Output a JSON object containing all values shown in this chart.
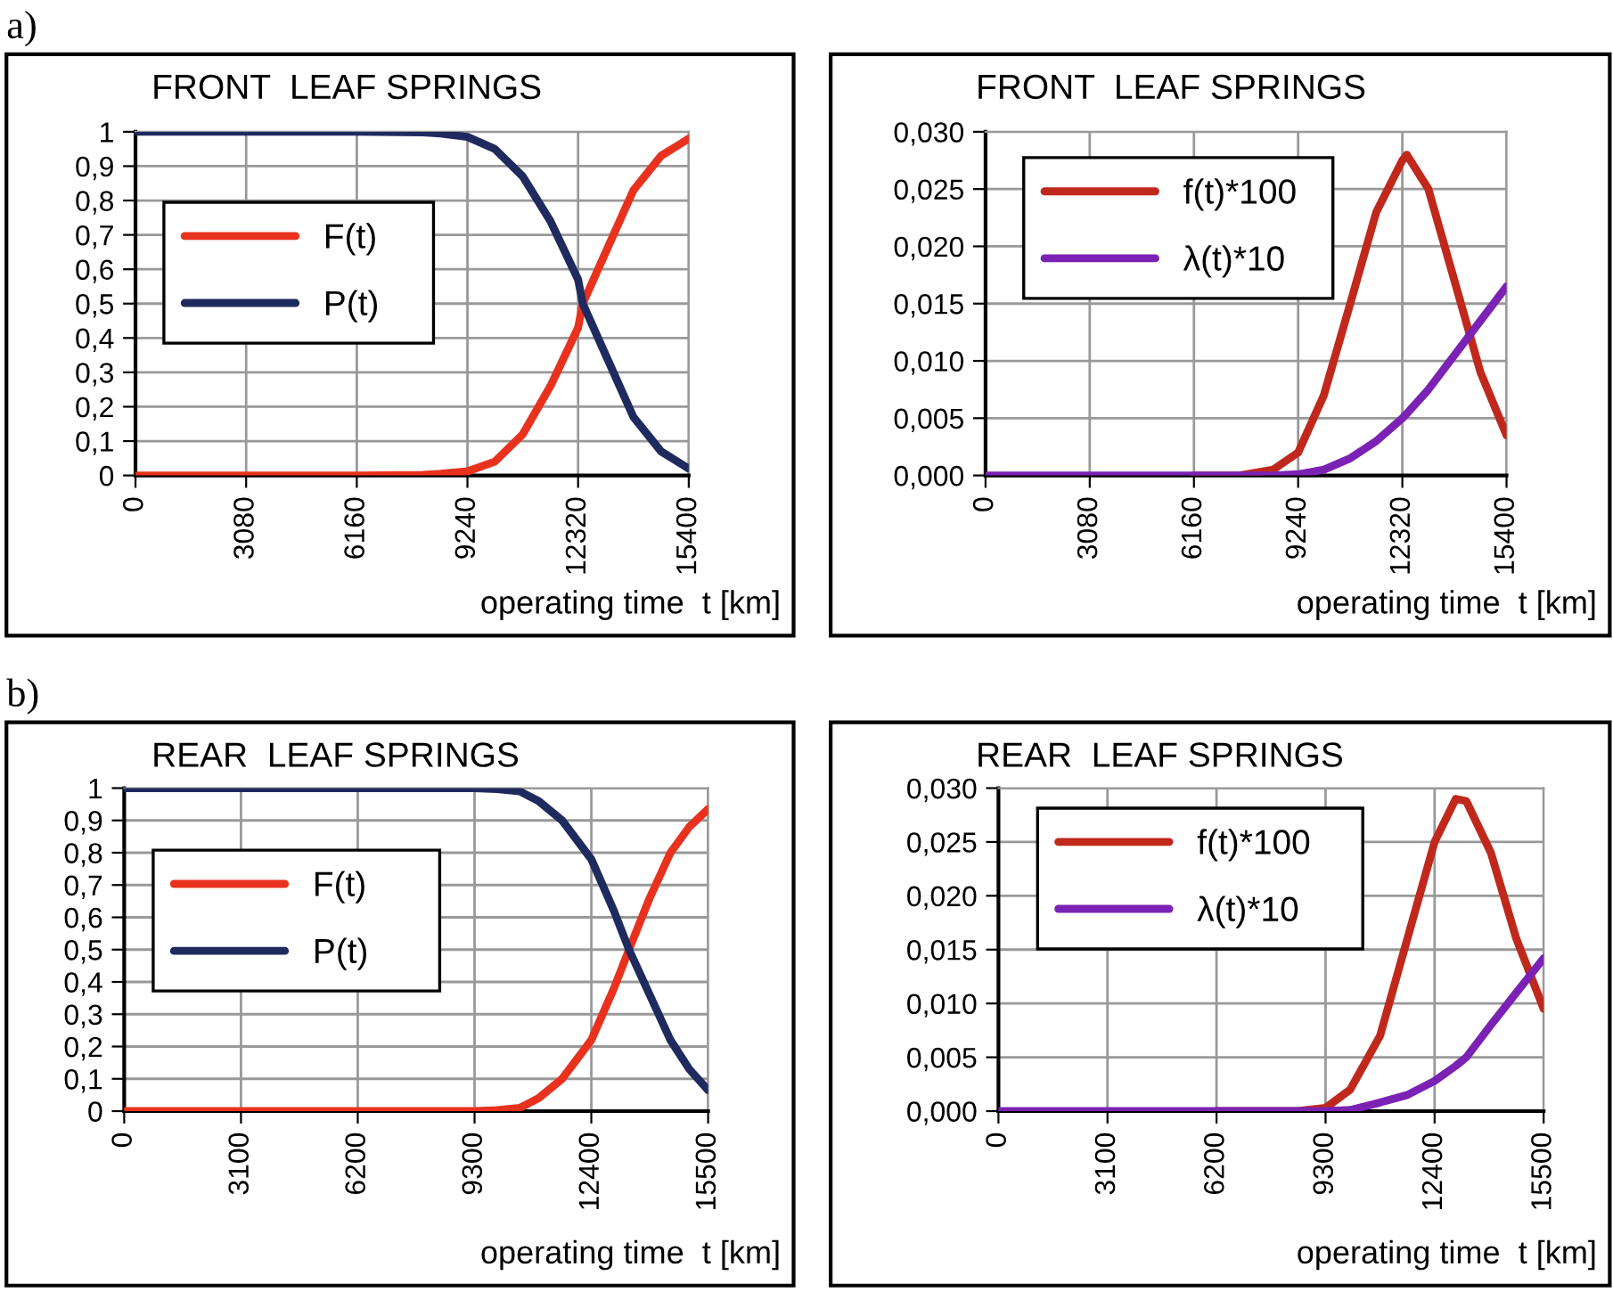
{
  "chart_data": [
    {
      "type": "line",
      "title": "FRONT  LEAF SPRINGS",
      "xlabel": "operating time  t [km]",
      "annotations": [
        "a)"
      ],
      "grid": true,
      "legend": "center left",
      "line_style": "solid",
      "marker": "none",
      "xlim": [
        0,
        15400
      ],
      "xticks": [
        0,
        3080,
        6160,
        9240,
        12320,
        15400
      ],
      "ylim": [
        0,
        1
      ],
      "yticks": [
        0,
        {
          "value": 0.1,
          "label": "0,1"
        },
        {
          "value": 0.2,
          "label": "0,2"
        },
        {
          "value": 0.3,
          "label": "0,3"
        },
        {
          "value": 0.4,
          "label": "0,4"
        },
        {
          "value": 0.5,
          "label": "0,5"
        },
        {
          "value": 0.6,
          "label": "0,6"
        },
        {
          "value": 0.7,
          "label": "0,7"
        },
        {
          "value": 0.8,
          "label": "0,8"
        },
        {
          "value": 0.9,
          "label": "0,9"
        },
        1
      ],
      "x": [
        0,
        3080,
        6160,
        8000,
        8500,
        9240,
        10000,
        10780,
        11550,
        12320,
        12450,
        13090,
        13860,
        14630,
        15400
      ],
      "series": [
        {
          "name": "F(t)",
          "color": "#e8321e",
          "values": [
            0,
            0,
            0,
            0.002,
            0.005,
            0.012,
            0.04,
            0.12,
            0.26,
            0.43,
            0.5,
            0.65,
            0.83,
            0.93,
            0.98
          ]
        },
        {
          "name": "P(t)",
          "color": "#1f2a5e",
          "values": [
            1,
            1,
            1,
            0.998,
            0.995,
            0.985,
            0.95,
            0.87,
            0.74,
            0.57,
            0.5,
            0.35,
            0.17,
            0.07,
            0.02
          ]
        }
      ]
    },
    {
      "type": "line",
      "title": "FRONT  LEAF SPRINGS",
      "xlabel": "operating time  t [km]",
      "grid": true,
      "legend": "upper left",
      "line_style": "solid",
      "marker": "none",
      "xlim": [
        0,
        15400
      ],
      "xticks": [
        0,
        3080,
        6160,
        9240,
        12320,
        15400
      ],
      "ylim": [
        0,
        0.03
      ],
      "yticks": [
        {
          "value": 0,
          "label": "0,000"
        },
        {
          "value": 0.005,
          "label": "0,005"
        },
        {
          "value": 0.01,
          "label": "0,010"
        },
        {
          "value": 0.015,
          "label": "0,015"
        },
        {
          "value": 0.02,
          "label": "0,020"
        },
        {
          "value": 0.025,
          "label": "0,025"
        },
        {
          "value": 0.03,
          "label": "0,030"
        }
      ],
      "x": [
        0,
        3080,
        6160,
        7500,
        8500,
        9240,
        10000,
        10780,
        11550,
        12320,
        12450,
        13090,
        13860,
        14630,
        15400
      ],
      "series": [
        {
          "name": "f(t)*100",
          "color": "#c0281c",
          "values": [
            null,
            null,
            0,
            0,
            0.0005,
            0.002,
            0.007,
            0.015,
            0.023,
            0.0275,
            0.028,
            0.025,
            0.017,
            0.009,
            0.0035
          ]
        },
        {
          "name": "λ(t)*10",
          "color": "#7b22b4",
          "values": [
            0,
            0,
            0,
            0,
            0,
            0.0001,
            0.0005,
            0.0015,
            0.003,
            0.005,
            0.0054,
            0.0075,
            0.0105,
            0.0135,
            0.0165
          ]
        }
      ]
    },
    {
      "type": "line",
      "title": "REAR  LEAF SPRINGS",
      "xlabel": "operating time  t [km]",
      "annotations": [
        "b)"
      ],
      "grid": true,
      "legend": "center left",
      "line_style": "solid",
      "marker": "none",
      "xlim": [
        0,
        15500
      ],
      "xticks": [
        0,
        3100,
        6200,
        9300,
        12400,
        15500
      ],
      "ylim": [
        0,
        1
      ],
      "yticks": [
        0,
        {
          "value": 0.1,
          "label": "0,1"
        },
        {
          "value": 0.2,
          "label": "0,2"
        },
        {
          "value": 0.3,
          "label": "0,3"
        },
        {
          "value": 0.4,
          "label": "0,4"
        },
        {
          "value": 0.5,
          "label": "0,5"
        },
        {
          "value": 0.6,
          "label": "0,6"
        },
        {
          "value": 0.7,
          "label": "0,7"
        },
        {
          "value": 0.8,
          "label": "0,8"
        },
        {
          "value": 0.9,
          "label": "0,9"
        },
        1
      ],
      "x": [
        0,
        3100,
        6200,
        9300,
        9900,
        10500,
        11000,
        11625,
        12400,
        13000,
        13400,
        13950,
        14500,
        15000,
        15500
      ],
      "series": [
        {
          "name": "F(t)",
          "color": "#e8321e",
          "values": [
            0,
            0,
            0,
            0,
            0.003,
            0.01,
            0.04,
            0.1,
            0.22,
            0.38,
            0.5,
            0.66,
            0.8,
            0.88,
            0.935
          ]
        },
        {
          "name": "P(t)",
          "color": "#1f2a5e",
          "values": [
            1,
            1,
            1,
            1,
            0.997,
            0.99,
            0.96,
            0.9,
            0.78,
            0.62,
            0.5,
            0.36,
            0.22,
            0.13,
            0.065
          ]
        }
      ]
    },
    {
      "type": "line",
      "title": "REAR  LEAF SPRINGS",
      "xlabel": "operating time  t [km]",
      "grid": true,
      "legend": "upper left",
      "line_style": "solid",
      "marker": "none",
      "xlim": [
        0,
        15500
      ],
      "xticks": [
        0,
        3100,
        6200,
        9300,
        12400,
        15500
      ],
      "ylim": [
        0,
        0.03
      ],
      "yticks": [
        {
          "value": 0,
          "label": "0,000"
        },
        {
          "value": 0.005,
          "label": "0,005"
        },
        {
          "value": 0.01,
          "label": "0,010"
        },
        {
          "value": 0.015,
          "label": "0,015"
        },
        {
          "value": 0.02,
          "label": "0,020"
        },
        {
          "value": 0.025,
          "label": "0,025"
        },
        {
          "value": 0.03,
          "label": "0,030"
        }
      ],
      "x": [
        0,
        3100,
        6200,
        8500,
        9300,
        10000,
        10850,
        11625,
        12400,
        13000,
        13300,
        14000,
        14725,
        15500
      ],
      "series": [
        {
          "name": "f(t)*100",
          "color": "#c0281c",
          "values": [
            null,
            null,
            0,
            0,
            0.0003,
            0.002,
            0.007,
            0.016,
            0.025,
            0.029,
            0.0288,
            0.024,
            0.016,
            0.0095
          ]
        },
        {
          "name": "λ(t)*10",
          "color": "#7b22b4",
          "values": [
            0,
            0,
            0,
            0,
            0,
            0.0001,
            0.0008,
            0.0015,
            0.0028,
            0.0042,
            0.005,
            0.008,
            0.011,
            0.0142
          ]
        }
      ]
    }
  ]
}
